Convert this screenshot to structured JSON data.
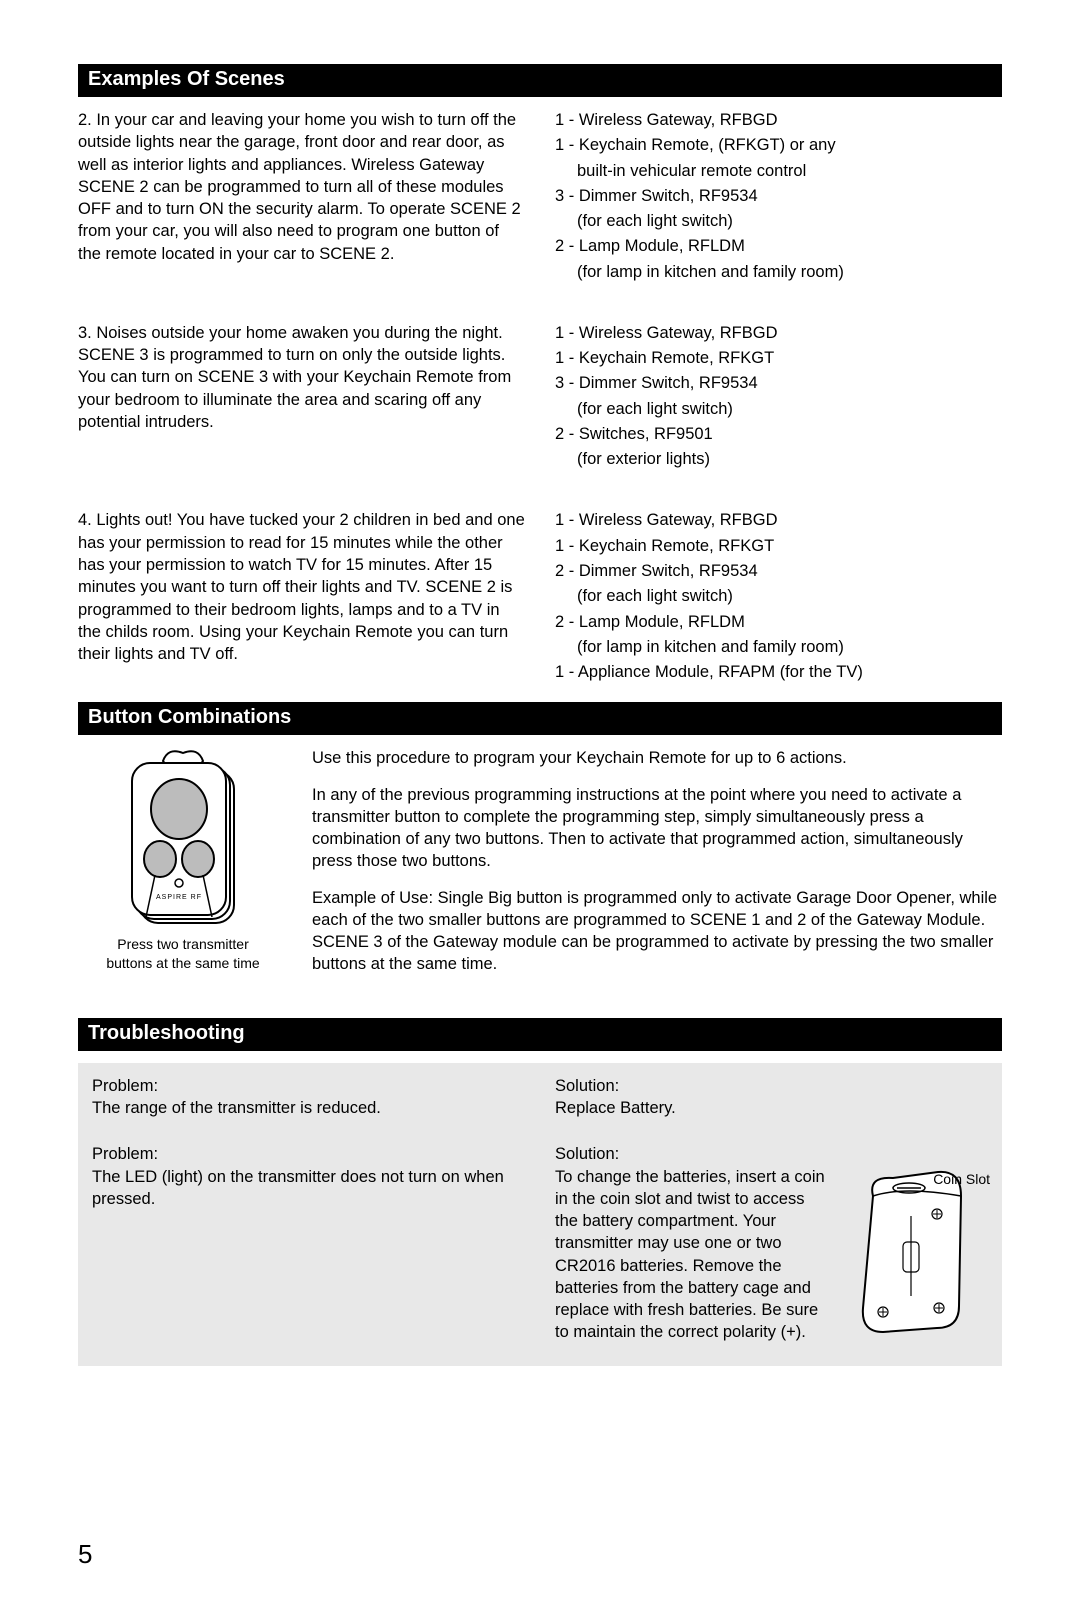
{
  "headers": {
    "examples": "Examples Of Scenes",
    "button": "Button Combinations",
    "trouble": "Troubleshooting"
  },
  "examples": {
    "row1": {
      "left": "2.  In your car and leaving your home you wish to turn off the outside lights near the garage, front door and rear door, as well as interior lights and appliances.  Wireless Gateway SCENE 2 can be programmed to turn all of these modules OFF and to turn ON the security alarm.  To operate SCENE 2 from your car, you will also need to program one button of the remote located in your car to SCENE 2.",
      "right": [
        {
          "t": "1 - Wireless Gateway, RFBGD"
        },
        {
          "t": "1 - Keychain Remote, (RFKGT) or any"
        },
        {
          "t": "built-in vehicular remote control",
          "i": true
        },
        {
          "t": "3 - Dimmer Switch, RF9534"
        },
        {
          "t": "(for each light switch)",
          "i": true
        },
        {
          "t": "2 - Lamp Module, RFLDM"
        },
        {
          "t": "(for lamp in kitchen and family room)",
          "i": true
        }
      ]
    },
    "row2": {
      "left": "3. Noises outside your home awaken you during the night.  SCENE 3 is programmed to turn on only the outside lights. You can turn on SCENE 3 with your Keychain Remote from your bedroom to illuminate the area and scaring off any potential intruders.",
      "right": [
        {
          "t": "1 - Wireless Gateway, RFBGD"
        },
        {
          "t": "1 - Keychain Remote, RFKGT"
        },
        {
          "t": "3 - Dimmer Switch, RF9534"
        },
        {
          "t": "(for each light switch)",
          "i": true
        },
        {
          "t": "2 - Switches, RF9501"
        },
        {
          "t": "(for exterior lights)",
          "i": true
        }
      ]
    },
    "row3": {
      "left": "4. Lights out! You have tucked your 2 children in bed and one has your permission to read for 15 minutes while the other has your permission to watch TV for 15 minutes.  After 15 minutes you want to turn off their lights and TV.  SCENE 2 is programmed to their bedroom lights, lamps and to a TV in the childs room.  Using your Keychain Remote you can turn their lights and TV off.",
      "right": [
        {
          "t": "1 - Wireless Gateway, RFBGD"
        },
        {
          "t": "1 - Keychain Remote, RFKGT"
        },
        {
          "t": "2 - Dimmer Switch, RF9534"
        },
        {
          "t": "(for each light switch)",
          "i": true
        },
        {
          "t": "2 - Lamp Module, RFLDM"
        },
        {
          "t": "(for lamp in kitchen and family room)",
          "i": true
        },
        {
          "t": "1 - Appliance Module, RFAPM (for the TV)"
        }
      ]
    }
  },
  "button": {
    "caption1": "Press two transmitter",
    "caption2": "buttons at the same time",
    "p1": "Use this procedure to program your Keychain Remote for up to 6 actions.",
    "p2": "In any of the previous programming instructions at the point where you need to activate a transmitter button to complete the programming step, simply simultaneously press a combination of any two buttons.  Then to activate that programmed action, simultaneously press those two buttons.",
    "p3": "Example of Use: Single Big button is programmed only to activate Garage Door Opener, while each of the two smaller buttons are programmed to SCENE 1 and 2 of the Gateway Module.  SCENE 3 of the Gateway module can be programmed to activate by pressing the two smaller buttons at the same time."
  },
  "trouble": {
    "p1_label": "Problem:",
    "p1_text": "The range of the transmitter is reduced.",
    "s1_label": "Solution:",
    "s1_text": "Replace Battery.",
    "p2_label": "Problem:",
    "p2_text": "The LED (light) on the transmitter does not turn on when pressed.",
    "s2_label": "Solution:",
    "s2_text": "To change the batteries, insert a coin in the coin slot and twist to access the battery compartment.  Your  transmitter may use one or two CR2016 batteries.  Remove the batteries from the battery cage and replace with fresh batteries.  Be sure to maintain the correct polarity (+).",
    "coin_label": "Coin Slot"
  },
  "page_number": "5",
  "remote_label": "ASPIRE RF"
}
